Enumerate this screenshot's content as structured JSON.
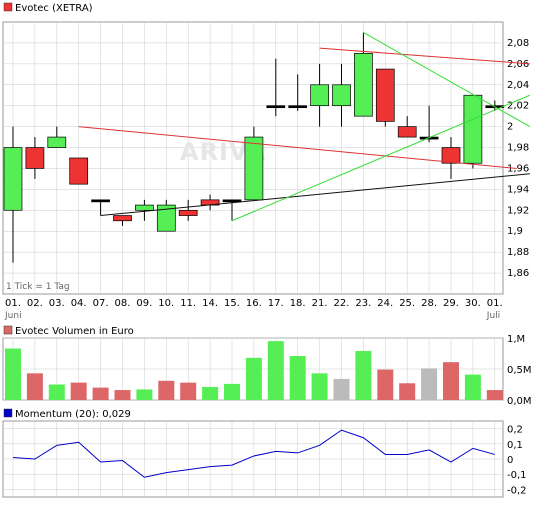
{
  "chart_data": [
    {
      "type": "candlestick",
      "legend": {
        "label": "Evotec (XETRA)",
        "color": "#ee3333"
      },
      "tick_note": "1 Tick = 1 Tag",
      "watermark": "ARIVA",
      "ylim": [
        1.84,
        2.1
      ],
      "y_ticks": [
        "2,08",
        "2,06",
        "2,04",
        "2,02",
        "2",
        "1,98",
        "1,96",
        "1,94",
        "1,92",
        "1,9",
        "1,88",
        "1,86"
      ],
      "y_tick_values": [
        2.08,
        2.06,
        2.04,
        2.02,
        2.0,
        1.98,
        1.96,
        1.94,
        1.92,
        1.9,
        1.88,
        1.86
      ],
      "x_labels": [
        "01.",
        "02.",
        "03.",
        "04.",
        "07.",
        "08.",
        "09.",
        "10.",
        "11.",
        "14.",
        "15.",
        "16.",
        "17.",
        "18.",
        "21.",
        "22.",
        "23.",
        "24.",
        "25.",
        "28.",
        "29.",
        "30.",
        "01."
      ],
      "x_sublabels": [
        "Juni",
        "",
        "",
        "",
        "",
        "",
        "",
        "",
        "",
        "",
        "",
        "",
        "",
        "",
        "",
        "",
        "",
        "",
        "",
        "",
        "",
        "",
        "Juli"
      ],
      "candles": [
        {
          "o": 1.92,
          "h": 2.0,
          "l": 1.87,
          "c": 1.98
        },
        {
          "o": 1.98,
          "h": 1.99,
          "l": 1.95,
          "c": 1.96
        },
        {
          "o": 1.98,
          "h": 2.0,
          "l": 1.98,
          "c": 1.99
        },
        {
          "o": 1.97,
          "h": 1.97,
          "l": 1.945,
          "c": 1.945
        },
        {
          "o": 1.93,
          "h": 1.93,
          "l": 1.915,
          "c": 1.93
        },
        {
          "o": 1.915,
          "h": 1.915,
          "l": 1.905,
          "c": 1.91
        },
        {
          "o": 1.92,
          "h": 1.93,
          "l": 1.91,
          "c": 1.925
        },
        {
          "o": 1.9,
          "h": 1.93,
          "l": 1.9,
          "c": 1.925
        },
        {
          "o": 1.92,
          "h": 1.93,
          "l": 1.91,
          "c": 1.915
        },
        {
          "o": 1.93,
          "h": 1.935,
          "l": 1.92,
          "c": 1.925
        },
        {
          "o": 1.93,
          "h": 1.93,
          "l": 1.91,
          "c": 1.93
        },
        {
          "o": 1.93,
          "h": 2.0,
          "l": 1.93,
          "c": 1.99
        },
        {
          "o": 2.02,
          "h": 2.065,
          "l": 2.01,
          "c": 2.02
        },
        {
          "o": 2.02,
          "h": 2.05,
          "l": 2.015,
          "c": 2.02
        },
        {
          "o": 2.02,
          "h": 2.06,
          "l": 2.0,
          "c": 2.04
        },
        {
          "o": 2.02,
          "h": 2.06,
          "l": 2.0,
          "c": 2.04
        },
        {
          "o": 2.01,
          "h": 2.09,
          "l": 2.01,
          "c": 2.07
        },
        {
          "o": 2.055,
          "h": 2.055,
          "l": 2.0,
          "c": 2.005
        },
        {
          "o": 2.0,
          "h": 2.01,
          "l": 1.99,
          "c": 1.99
        },
        {
          "o": 1.99,
          "h": 2.02,
          "l": 1.985,
          "c": 1.99
        },
        {
          "o": 1.98,
          "h": 1.99,
          "l": 1.95,
          "c": 1.965
        },
        {
          "o": 1.965,
          "h": 2.03,
          "l": 1.96,
          "c": 2.03
        },
        {
          "o": 2.02,
          "h": 2.025,
          "l": 2.015,
          "c": 2.02
        }
      ],
      "trendlines": [
        {
          "color": "#dd3333",
          "points": [
            [
              3,
              2.0
            ],
            [
              23,
              1.96
            ]
          ]
        },
        {
          "color": "#dd3333",
          "points": [
            [
              14,
              2.075
            ],
            [
              23.6,
              2.06
            ]
          ]
        },
        {
          "color": "#111111",
          "points": [
            [
              4,
              1.915
            ],
            [
              23.6,
              1.955
            ]
          ]
        },
        {
          "color": "#33dd33",
          "points": [
            [
              10,
              1.91
            ],
            [
              23.6,
              2.03
            ]
          ]
        },
        {
          "color": "#33dd33",
          "points": [
            [
              16,
              2.09
            ],
            [
              23.6,
              2.0
            ]
          ]
        }
      ]
    },
    {
      "type": "bar",
      "legend": {
        "label": "Evotec Volumen in Euro",
        "color": "#dd6666"
      },
      "ylim": [
        0,
        1.0
      ],
      "y_ticks": [
        "1,M",
        "0,5M",
        "0,0M"
      ],
      "y_tick_values": [
        1.0,
        0.5,
        0.0
      ],
      "values": [
        0.83,
        0.43,
        0.25,
        0.28,
        0.2,
        0.16,
        0.17,
        0.31,
        0.28,
        0.21,
        0.26,
        0.68,
        0.95,
        0.71,
        0.43,
        0.34,
        0.79,
        0.49,
        0.27,
        0.51,
        0.61,
        0.41,
        0.16
      ],
      "colors": [
        "green",
        "red",
        "green",
        "red",
        "red",
        "red",
        "green",
        "red",
        "red",
        "green",
        "green",
        "green",
        "green",
        "green",
        "green",
        "gray",
        "green",
        "red",
        "red",
        "gray",
        "red",
        "green",
        "red"
      ]
    },
    {
      "type": "line",
      "legend": {
        "label": "Momentum (20): 0,029",
        "color": "#0000cc"
      },
      "ylim": [
        -0.25,
        0.25
      ],
      "y_ticks": [
        "0,2",
        "0,1",
        "0",
        "-0,1",
        "-0,2"
      ],
      "y_tick_values": [
        0.2,
        0.1,
        0.0,
        -0.1,
        -0.2
      ],
      "values": [
        0.01,
        0.0,
        0.09,
        0.11,
        -0.02,
        -0.01,
        -0.12,
        -0.09,
        -0.07,
        -0.05,
        -0.04,
        0.02,
        0.05,
        0.04,
        0.09,
        0.19,
        0.14,
        0.03,
        0.03,
        0.06,
        -0.02,
        0.07,
        0.03
      ]
    }
  ],
  "colors": {
    "up": "#55ee55",
    "down": "#ee3333",
    "neutral": "#bbbbbb",
    "grid": "#cccccc",
    "momentum": "#0000cc"
  }
}
